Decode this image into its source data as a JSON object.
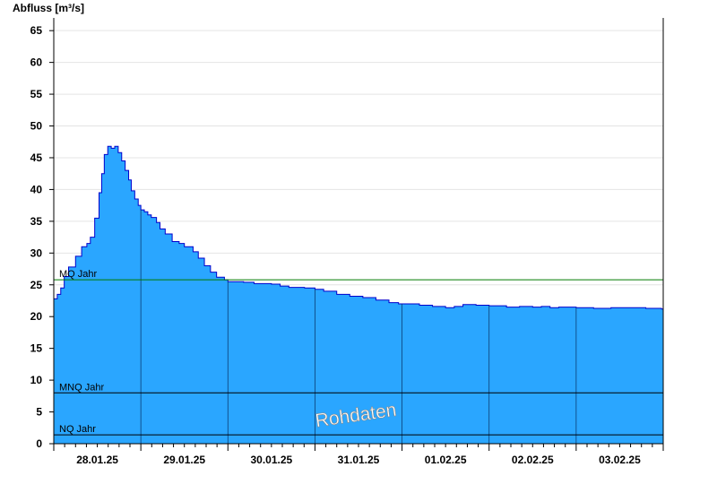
{
  "chart_data": {
    "type": "area",
    "title": "",
    "ylabel": "Abfluss [m³/s]",
    "xlabel": "",
    "ylim": [
      0,
      67
    ],
    "yticks": [
      0,
      5,
      10,
      15,
      20,
      25,
      30,
      35,
      40,
      45,
      50,
      55,
      60,
      65
    ],
    "xlim": [
      0,
      7
    ],
    "xticks": [
      {
        "x": 0.5,
        "label": "28.01.25"
      },
      {
        "x": 1.5,
        "label": "29.01.25"
      },
      {
        "x": 2.5,
        "label": "30.01.25"
      },
      {
        "x": 3.5,
        "label": "31.01.25"
      },
      {
        "x": 4.5,
        "label": "01.02.25"
      },
      {
        "x": 5.5,
        "label": "02.02.25"
      },
      {
        "x": 6.5,
        "label": "03.02.25"
      }
    ],
    "day_separators": [
      1,
      2,
      3,
      4,
      5,
      6
    ],
    "grid": true,
    "fill_color": "#2aa6ff",
    "line_color": "#0000cc",
    "reference_lines": [
      {
        "label": "MQ Jahr",
        "value": 25.8,
        "color": "#007a00"
      },
      {
        "label": "MNQ Jahr",
        "value": 8.0,
        "color": "#000000"
      },
      {
        "label": "NQ Jahr",
        "value": 1.4,
        "color": "#000000"
      }
    ],
    "watermark": "Rohdaten",
    "series": [
      {
        "x": [
          0.0,
          0.04,
          0.08,
          0.12,
          0.17,
          0.25,
          0.32,
          0.38,
          0.42,
          0.47,
          0.52,
          0.55,
          0.58,
          0.62,
          0.66,
          0.7,
          0.74,
          0.78,
          0.82,
          0.86,
          0.89,
          0.93,
          0.97,
          1.0,
          1.04,
          1.08,
          1.12,
          1.18,
          1.22,
          1.28,
          1.36,
          1.44,
          1.5,
          1.55,
          1.6,
          1.66,
          1.73,
          1.8,
          1.87,
          1.92,
          1.96,
          2.0,
          2.04,
          2.1,
          2.18,
          2.3,
          2.42,
          2.5,
          2.6,
          2.7,
          2.8,
          2.88,
          2.94,
          3.0,
          3.1,
          3.25,
          3.4,
          3.55,
          3.7,
          3.85,
          3.96,
          4.05,
          4.2,
          4.35,
          4.5,
          4.6,
          4.7,
          4.85,
          5.0,
          5.2,
          5.35,
          5.5,
          5.6,
          5.7,
          5.8,
          6.0,
          6.2,
          6.4,
          6.6,
          6.8,
          6.98,
          7.0
        ],
        "values": [
          22.8,
          23.5,
          24.5,
          26.3,
          27.8,
          29.5,
          31.0,
          31.5,
          32.5,
          35.5,
          39.5,
          42.5,
          45.5,
          46.8,
          46.5,
          46.8,
          45.8,
          44.5,
          43.0,
          41.5,
          39.8,
          38.5,
          37.5,
          36.8,
          36.5,
          36.0,
          35.6,
          34.8,
          33.8,
          33.0,
          31.8,
          31.5,
          31.0,
          31.0,
          30.2,
          29.2,
          28.0,
          27.0,
          26.2,
          26.2,
          25.8,
          25.5,
          25.5,
          25.5,
          25.4,
          25.2,
          25.2,
          25.1,
          24.8,
          24.6,
          24.6,
          24.5,
          24.5,
          24.3,
          24.0,
          23.5,
          23.2,
          23.0,
          22.6,
          22.2,
          22.0,
          22.0,
          21.8,
          21.6,
          21.4,
          21.6,
          21.9,
          21.8,
          21.7,
          21.5,
          21.6,
          21.5,
          21.6,
          21.4,
          21.5,
          21.4,
          21.3,
          21.4,
          21.4,
          21.3,
          21.2,
          21.2
        ]
      }
    ]
  }
}
